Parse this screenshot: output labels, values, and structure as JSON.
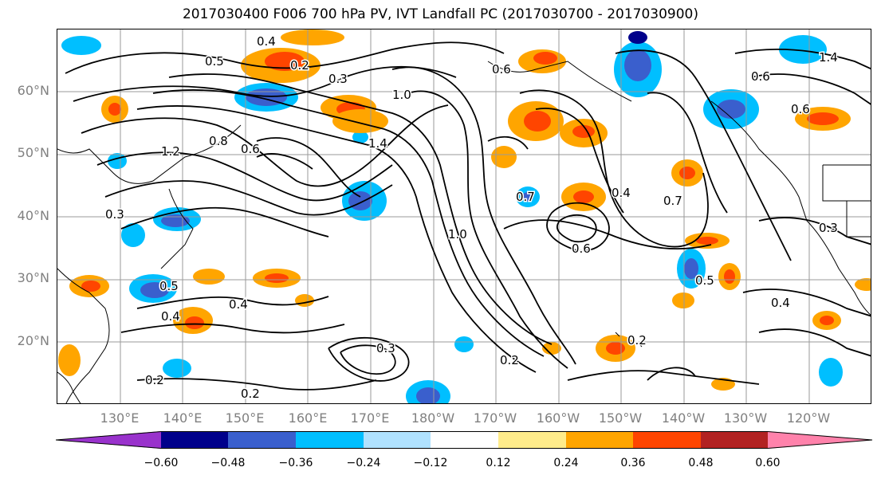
{
  "title": "2017030400 F006 700 hPa PV, IVT Landfall PC (2017030700 - 2017030900)",
  "lat_labels": [
    "60°N",
    "50°N",
    "40°N",
    "30°N",
    "20°N"
  ],
  "lon_labels": [
    "130°E",
    "140°E",
    "150°E",
    "160°E",
    "170°E",
    "180°W",
    "170°W",
    "160°W",
    "150°W",
    "140°W",
    "130°W",
    "120°W"
  ],
  "colorbar": {
    "ticks": [
      "−0.60",
      "−0.48",
      "−0.36",
      "−0.24",
      "−0.12",
      "0.12",
      "0.24",
      "0.36",
      "0.48",
      "0.60"
    ],
    "colors": [
      "#9932CC",
      "#00008B",
      "#3A5FCD",
      "#00BFFF",
      "#B0E2FF",
      "#FFFFFF",
      "#FFEC8B",
      "#FFA500",
      "#FF4500",
      "#B22222",
      "#FF82AB"
    ]
  },
  "contour_labels": [
    "0.5",
    "0.4",
    "0.2",
    "0.6",
    "0.3",
    "1.0",
    "1.2",
    "0.8",
    "0.4",
    "0.6",
    "1.4",
    "0.7",
    "1.0",
    "0.6",
    "0.7",
    "0.3",
    "0.5",
    "0.4",
    "0.2",
    "0.2",
    "0.3",
    "0.4",
    "0.2",
    "0.2",
    "0.5",
    "0.3",
    "0.6",
    "0.6",
    "0.4",
    "1.4"
  ]
}
